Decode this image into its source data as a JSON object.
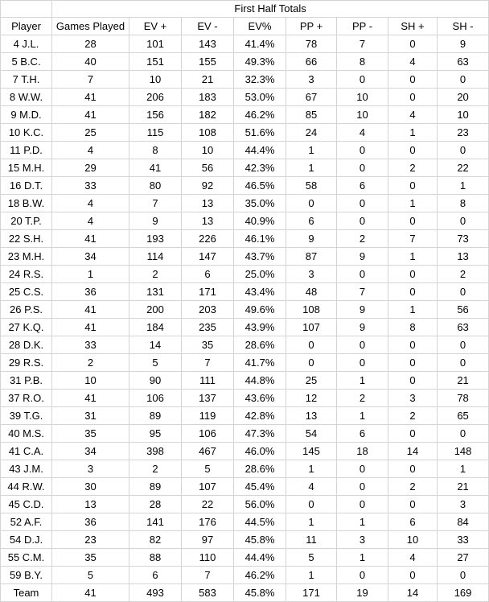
{
  "title": "First Half Totals",
  "headers": [
    "Player",
    "Games Played",
    "EV +",
    "EV -",
    "EV%",
    "PP +",
    "PP -",
    "SH +",
    "SH -"
  ],
  "rows": [
    [
      "4 J.L.",
      "28",
      "101",
      "143",
      "41.4%",
      "78",
      "7",
      "0",
      "9"
    ],
    [
      "5 B.C.",
      "40",
      "151",
      "155",
      "49.3%",
      "66",
      "8",
      "4",
      "63"
    ],
    [
      "7 T.H.",
      "7",
      "10",
      "21",
      "32.3%",
      "3",
      "0",
      "0",
      "0"
    ],
    [
      "8 W.W.",
      "41",
      "206",
      "183",
      "53.0%",
      "67",
      "10",
      "0",
      "20"
    ],
    [
      "9 M.D.",
      "41",
      "156",
      "182",
      "46.2%",
      "85",
      "10",
      "4",
      "10"
    ],
    [
      "10 K.C.",
      "25",
      "115",
      "108",
      "51.6%",
      "24",
      "4",
      "1",
      "23"
    ],
    [
      "11 P.D.",
      "4",
      "8",
      "10",
      "44.4%",
      "1",
      "0",
      "0",
      "0"
    ],
    [
      "15 M.H.",
      "29",
      "41",
      "56",
      "42.3%",
      "1",
      "0",
      "2",
      "22"
    ],
    [
      "16 D.T.",
      "33",
      "80",
      "92",
      "46.5%",
      "58",
      "6",
      "0",
      "1"
    ],
    [
      "18 B.W.",
      "4",
      "7",
      "13",
      "35.0%",
      "0",
      "0",
      "1",
      "8"
    ],
    [
      "20 T.P.",
      "4",
      "9",
      "13",
      "40.9%",
      "6",
      "0",
      "0",
      "0"
    ],
    [
      "22 S.H.",
      "41",
      "193",
      "226",
      "46.1%",
      "9",
      "2",
      "7",
      "73"
    ],
    [
      "23 M.H.",
      "34",
      "114",
      "147",
      "43.7%",
      "87",
      "9",
      "1",
      "13"
    ],
    [
      "24 R.S.",
      "1",
      "2",
      "6",
      "25.0%",
      "3",
      "0",
      "0",
      "2"
    ],
    [
      "25 C.S.",
      "36",
      "131",
      "171",
      "43.4%",
      "48",
      "7",
      "0",
      "0"
    ],
    [
      "26 P.S.",
      "41",
      "200",
      "203",
      "49.6%",
      "108",
      "9",
      "1",
      "56"
    ],
    [
      "27 K.Q.",
      "41",
      "184",
      "235",
      "43.9%",
      "107",
      "9",
      "8",
      "63"
    ],
    [
      "28 D.K.",
      "33",
      "14",
      "35",
      "28.6%",
      "0",
      "0",
      "0",
      "0"
    ],
    [
      "29 R.S.",
      "2",
      "5",
      "7",
      "41.7%",
      "0",
      "0",
      "0",
      "0"
    ],
    [
      "31 P.B.",
      "10",
      "90",
      "111",
      "44.8%",
      "25",
      "1",
      "0",
      "21"
    ],
    [
      "37 R.O.",
      "41",
      "106",
      "137",
      "43.6%",
      "12",
      "2",
      "3",
      "78"
    ],
    [
      "39 T.G.",
      "31",
      "89",
      "119",
      "42.8%",
      "13",
      "1",
      "2",
      "65"
    ],
    [
      "40 M.S.",
      "35",
      "95",
      "106",
      "47.3%",
      "54",
      "6",
      "0",
      "0"
    ],
    [
      "41 C.A.",
      "34",
      "398",
      "467",
      "46.0%",
      "145",
      "18",
      "14",
      "148"
    ],
    [
      "43 J.M.",
      "3",
      "2",
      "5",
      "28.6%",
      "1",
      "0",
      "0",
      "1"
    ],
    [
      "44 R.W.",
      "30",
      "89",
      "107",
      "45.4%",
      "4",
      "0",
      "2",
      "21"
    ],
    [
      "45 C.D.",
      "13",
      "28",
      "22",
      "56.0%",
      "0",
      "0",
      "0",
      "3"
    ],
    [
      "52 A.F.",
      "36",
      "141",
      "176",
      "44.5%",
      "1",
      "1",
      "6",
      "84"
    ],
    [
      "54 D.J.",
      "23",
      "82",
      "97",
      "45.8%",
      "11",
      "3",
      "10",
      "33"
    ],
    [
      "55 C.M.",
      "35",
      "88",
      "110",
      "44.4%",
      "5",
      "1",
      "4",
      "27"
    ],
    [
      "59 B.Y.",
      "5",
      "6",
      "7",
      "46.2%",
      "1",
      "0",
      "0",
      "0"
    ],
    [
      "Team",
      "41",
      "493",
      "583",
      "45.8%",
      "171",
      "19",
      "14",
      "169"
    ]
  ]
}
